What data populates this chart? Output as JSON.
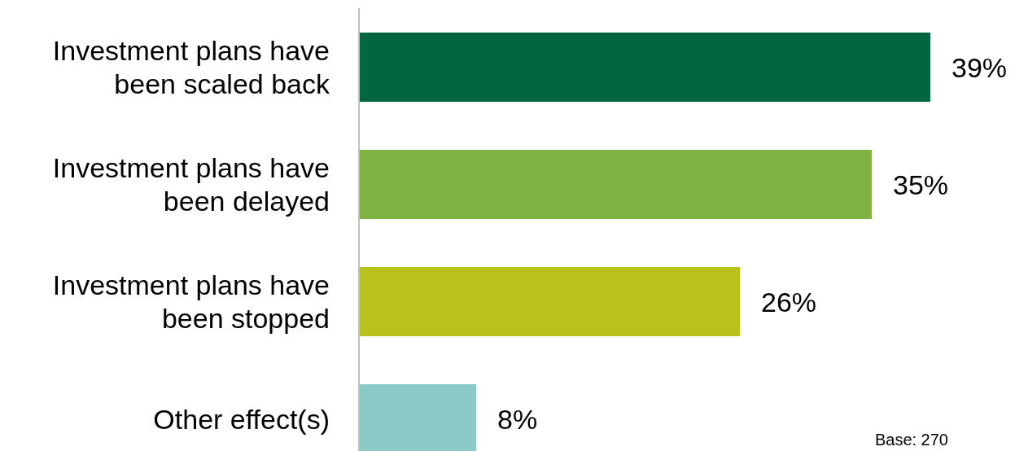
{
  "chart_data": {
    "type": "bar",
    "orientation": "horizontal",
    "categories": [
      "Investment plans have been scaled back",
      "Investment plans have been delayed",
      "Investment plans have been stopped",
      "Other effect(s)"
    ],
    "values": [
      39,
      35,
      26,
      8
    ],
    "colors": [
      "#02673f",
      "#80b241",
      "#b9c11c",
      "#8ccac8"
    ],
    "value_labels": [
      "39%",
      "35%",
      "26%",
      "8%"
    ],
    "annotations": [
      "Base: 270"
    ]
  }
}
